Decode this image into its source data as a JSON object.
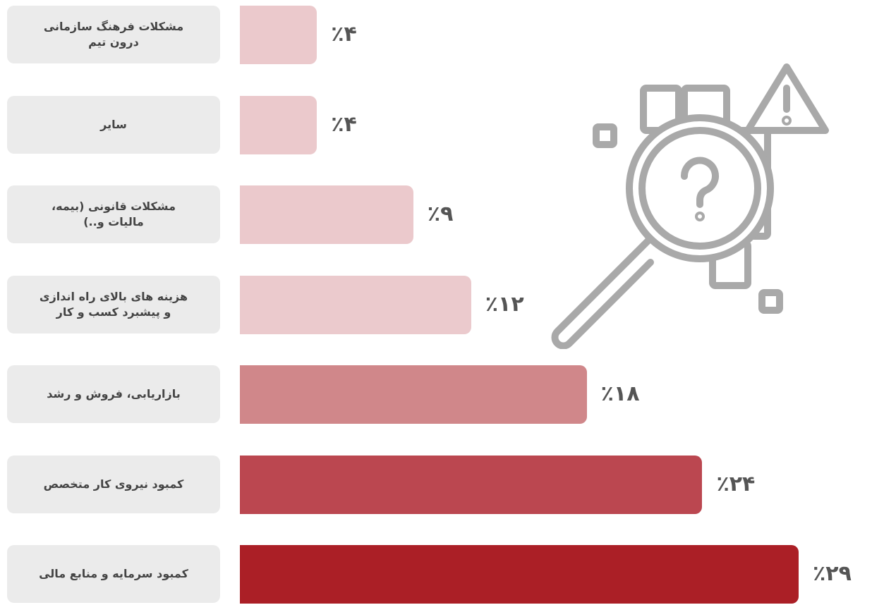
{
  "chart_data": {
    "type": "bar",
    "categories": [
      "مشکلات فرهنگ سازمانی درون تیم",
      "سایر",
      "مشکلات قانونی (بیمه، مالیات و..)",
      "هزینه های بالای راه اندازی و پیشبرد کسب و کار",
      "بازاریابی، فروش و رشد",
      "کمبود نیروی کار متخصص",
      "کمبود سرمایه و منابع مالی"
    ],
    "values": [
      4,
      4,
      9,
      12,
      18,
      24,
      29
    ],
    "value_labels": [
      "٪۴",
      "٪۴",
      "٪۹",
      "٪۱۲",
      "٪۱۸",
      "٪۲۴",
      "٪۲۹"
    ],
    "colors": [
      "#ebc9cc",
      "#ebc9cc",
      "#ebc9cc",
      "#ebcacd",
      "#d0878a",
      "#bb4750",
      "#ab1f26"
    ]
  }
}
